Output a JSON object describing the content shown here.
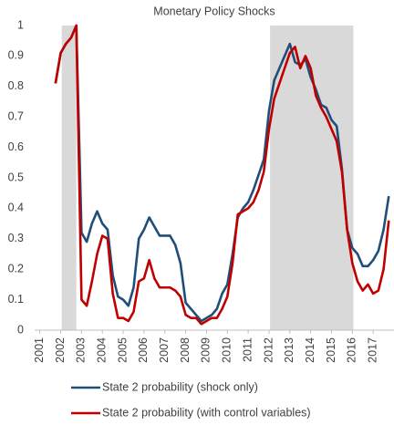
{
  "chart_data": {
    "type": "line",
    "title": "Monetary Policy Shocks",
    "x": [
      2001.75,
      2002,
      2002.25,
      2002.5,
      2002.75,
      2003,
      2003.25,
      2003.5,
      2003.75,
      2004,
      2004.25,
      2004.5,
      2004.75,
      2005,
      2005.25,
      2005.5,
      2005.75,
      2006,
      2006.25,
      2006.5,
      2006.75,
      2007,
      2007.25,
      2007.5,
      2007.75,
      2008,
      2008.25,
      2008.5,
      2008.75,
      2009,
      2009.25,
      2009.5,
      2009.75,
      2010,
      2010.25,
      2010.5,
      2010.75,
      2011,
      2011.25,
      2011.5,
      2011.75,
      2012,
      2012.25,
      2012.5,
      2012.75,
      2013,
      2013.25,
      2013.5,
      2013.75,
      2014,
      2014.25,
      2014.5,
      2014.75,
      2015,
      2015.25,
      2015.5,
      2015.75,
      2016,
      2016.25,
      2016.5,
      2016.75,
      2017,
      2017.25,
      2017.5,
      2017.75
    ],
    "series": [
      {
        "name": "State 2 probability (shock only)",
        "color": "#1f4e79",
        "values": [
          0.81,
          0.91,
          0.94,
          0.96,
          1.0,
          0.32,
          0.29,
          0.35,
          0.39,
          0.35,
          0.33,
          0.18,
          0.11,
          0.1,
          0.08,
          0.14,
          0.3,
          0.33,
          0.37,
          0.34,
          0.31,
          0.31,
          0.31,
          0.28,
          0.22,
          0.09,
          0.07,
          0.05,
          0.03,
          0.04,
          0.05,
          0.07,
          0.12,
          0.15,
          0.25,
          0.37,
          0.4,
          0.42,
          0.46,
          0.51,
          0.56,
          0.72,
          0.82,
          0.86,
          0.9,
          0.94,
          0.88,
          0.87,
          0.89,
          0.83,
          0.79,
          0.74,
          0.73,
          0.69,
          0.67,
          0.53,
          0.33,
          0.27,
          0.25,
          0.21,
          0.21,
          0.23,
          0.26,
          0.33,
          0.44
        ]
      },
      {
        "name": "State 2 probability (with control variables)",
        "color": "#c00000",
        "values": [
          0.81,
          0.91,
          0.94,
          0.96,
          1.0,
          0.1,
          0.08,
          0.16,
          0.25,
          0.31,
          0.3,
          0.12,
          0.04,
          0.04,
          0.03,
          0.06,
          0.16,
          0.17,
          0.23,
          0.17,
          0.14,
          0.14,
          0.14,
          0.13,
          0.11,
          0.05,
          0.04,
          0.04,
          0.02,
          0.03,
          0.04,
          0.04,
          0.07,
          0.11,
          0.22,
          0.38,
          0.39,
          0.4,
          0.42,
          0.46,
          0.52,
          0.66,
          0.76,
          0.81,
          0.86,
          0.91,
          0.93,
          0.86,
          0.9,
          0.86,
          0.77,
          0.73,
          0.7,
          0.66,
          0.62,
          0.52,
          0.33,
          0.22,
          0.16,
          0.13,
          0.15,
          0.12,
          0.13,
          0.2,
          0.36
        ]
      }
    ],
    "shaded_regions": [
      [
        2002.05,
        2002.75
      ],
      [
        2012.05,
        2016.05
      ]
    ],
    "shade_color": "#d9d9d9",
    "xlim": [
      2000.75,
      2018
    ],
    "xticks": [
      2001,
      2002,
      2003,
      2004,
      2005,
      2006,
      2007,
      2008,
      2009,
      2010,
      2011,
      2012,
      2013,
      2014,
      2015,
      2016,
      2017
    ],
    "ylim": [
      0,
      1
    ],
    "yticks": [
      0,
      0.1,
      0.2,
      0.3,
      0.4,
      0.5,
      0.6,
      0.7,
      0.8,
      0.9,
      1
    ],
    "grid": false
  }
}
